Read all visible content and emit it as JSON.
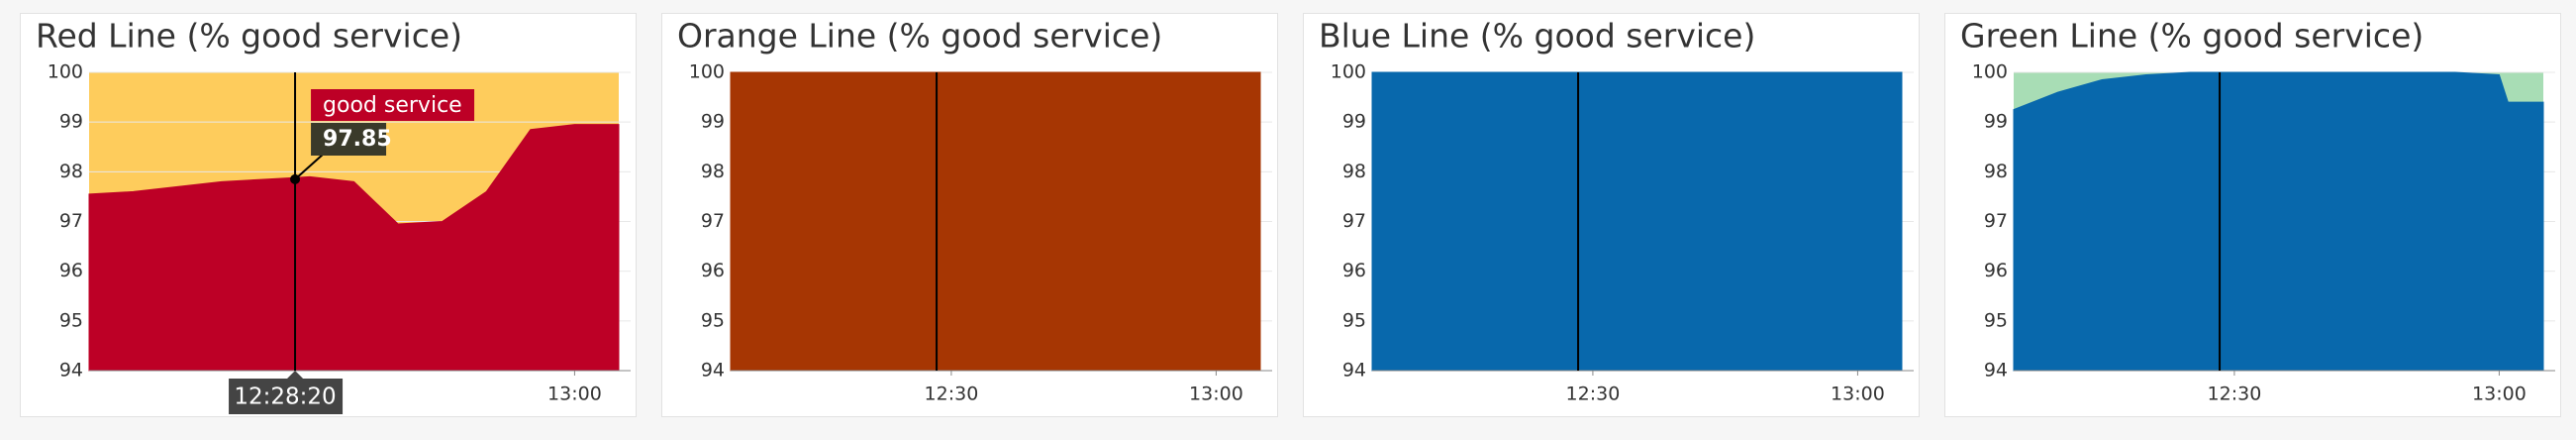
{
  "chart_data": [
    {
      "type": "area",
      "title": "Red Line (% good service)",
      "x": [
        "12:05",
        "12:10",
        "12:15",
        "12:20",
        "12:25",
        "12:30",
        "12:35",
        "12:40",
        "12:45",
        "12:50",
        "12:55",
        "13:00",
        "13:05"
      ],
      "series": [
        {
          "name": "good service",
          "color": "#bd0026",
          "values": [
            97.55,
            97.6,
            97.7,
            97.8,
            97.85,
            97.9,
            97.8,
            96.95,
            97.0,
            97.6,
            98.85,
            98.95,
            98.95
          ]
        }
      ],
      "fill_above_color": "#fecc5c",
      "xlim": [
        "12:05",
        "13:05"
      ],
      "xticks": [
        "13:00"
      ],
      "ylim": [
        94,
        100
      ],
      "yticks": [
        94,
        95,
        96,
        97,
        98,
        99,
        100
      ],
      "grid": true,
      "cursor": "12:28:20",
      "tooltip_value": 97.85
    },
    {
      "type": "area",
      "title": "Orange Line (% good service)",
      "x": [
        "12:05",
        "12:10",
        "12:15",
        "12:20",
        "12:25",
        "12:30",
        "12:35",
        "12:40",
        "12:45",
        "12:50",
        "12:55",
        "13:00",
        "13:05"
      ],
      "series": [
        {
          "color": "#a63603",
          "values": [
            100,
            100,
            100,
            100,
            100,
            100,
            100,
            100,
            100,
            100,
            100,
            100,
            100
          ]
        }
      ],
      "xlim": [
        "12:05",
        "13:05"
      ],
      "xticks": [
        "12:30",
        "13:00"
      ],
      "ylim": [
        94,
        100
      ],
      "yticks": [
        94,
        95,
        96,
        97,
        98,
        99,
        100
      ],
      "grid": true,
      "cursor": "12:28:20"
    },
    {
      "type": "area",
      "title": "Blue Line (% good service)",
      "x": [
        "12:05",
        "12:10",
        "12:15",
        "12:20",
        "12:25",
        "12:30",
        "12:35",
        "12:40",
        "12:45",
        "12:50",
        "12:55",
        "13:00",
        "13:05"
      ],
      "series": [
        {
          "color": "#0868ac",
          "values": [
            100,
            100,
            100,
            100,
            100,
            100,
            100,
            100,
            100,
            100,
            100,
            100,
            100
          ]
        }
      ],
      "xlim": [
        "12:05",
        "13:05"
      ],
      "xticks": [
        "12:30",
        "13:00"
      ],
      "ylim": [
        94,
        100
      ],
      "yticks": [
        94,
        95,
        96,
        97,
        98,
        99,
        100
      ],
      "grid": true,
      "cursor": "12:28:20"
    },
    {
      "type": "area",
      "title": "Green Line (% good service)",
      "x": [
        "12:05",
        "12:10",
        "12:15",
        "12:20",
        "12:25",
        "12:30",
        "12:35",
        "12:40",
        "12:45",
        "12:50",
        "12:55",
        "13:00",
        "13:01",
        "13:05"
      ],
      "series": [
        {
          "color": "#0868ac",
          "values": [
            99.25,
            99.6,
            99.85,
            99.95,
            100,
            100,
            100,
            100,
            100,
            100,
            100,
            99.95,
            99.4,
            99.4
          ]
        }
      ],
      "fill_above_color": "#a8ddb5",
      "xlim": [
        "12:05",
        "13:05"
      ],
      "xticks": [
        "12:30",
        "13:00"
      ],
      "ylim": [
        94,
        100
      ],
      "yticks": [
        94,
        95,
        96,
        97,
        98,
        99,
        100
      ],
      "grid": true,
      "cursor": "12:28:20"
    }
  ]
}
